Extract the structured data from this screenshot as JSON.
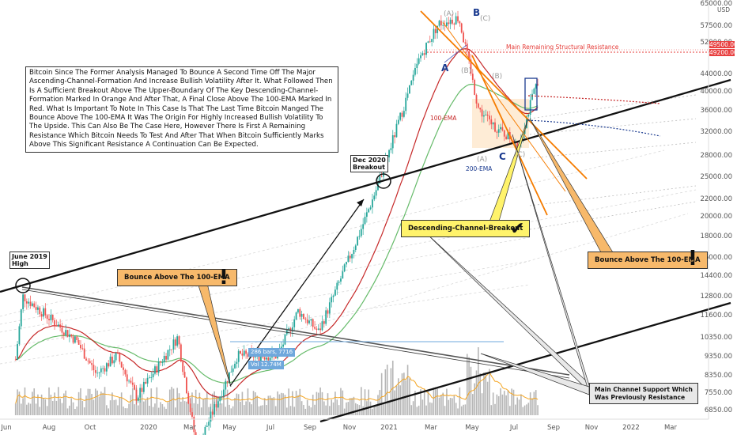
{
  "chart_data": {
    "type": "candlestick",
    "title": "",
    "y_scale": "log",
    "ylim": [
      6700,
      65000
    ],
    "x_tick_labels": [
      "Jun",
      "Aug",
      "Oct",
      "2020",
      "Mar",
      "May",
      "Jul",
      "Sep",
      "Nov",
      "2021",
      "Mar",
      "May",
      "Jul",
      "Sep",
      "Nov",
      "2022",
      "Mar"
    ],
    "y_tick_labels": [
      "65000.00",
      "57500.00",
      "52000.00",
      "44000.00",
      "40000.00",
      "36000.00",
      "32000.00",
      "28000.00",
      "25000.00",
      "22000.00",
      "20000.00",
      "18000.00",
      "16000.00",
      "14400.00",
      "12800.00",
      "11600.00",
      "10350.00",
      "9350.00",
      "8350.00",
      "7550.00",
      "6850.00"
    ],
    "currency_label": "USD",
    "price_marker_values": [
      "49500.00",
      "49200.00"
    ],
    "indicators": [
      "100-EMA",
      "200-EMA"
    ],
    "price_path": [
      {
        "date": "2019-06",
        "price": 9000
      },
      {
        "date": "2019-06-26",
        "price": 12800
      },
      {
        "date": "2019-08",
        "price": 11000
      },
      {
        "date": "2019-09",
        "price": 10000
      },
      {
        "date": "2019-10",
        "price": 8300
      },
      {
        "date": "2019-11",
        "price": 9200
      },
      {
        "date": "2019-12",
        "price": 7300
      },
      {
        "date": "2020-02",
        "price": 10200
      },
      {
        "date": "2020-03",
        "price": 5500
      },
      {
        "date": "2020-05",
        "price": 9200
      },
      {
        "date": "2020-07",
        "price": 9200
      },
      {
        "date": "2020-08",
        "price": 11800
      },
      {
        "date": "2020-09",
        "price": 10500
      },
      {
        "date": "2020-11",
        "price": 18000
      },
      {
        "date": "2020-12",
        "price": 24000
      },
      {
        "date": "2021-01",
        "price": 34000
      },
      {
        "date": "2021-02",
        "price": 48000
      },
      {
        "date": "2021-03",
        "price": 58000
      },
      {
        "date": "2021-04",
        "price": 60000
      },
      {
        "date": "2021-05",
        "price": 36000
      },
      {
        "date": "2021-06",
        "price": 32000
      },
      {
        "date": "2021-07",
        "price": 30000
      },
      {
        "date": "2021-08",
        "price": 44000
      }
    ],
    "annotation_labels": {
      "wave_A_outer": "(A)",
      "wave_B": "B",
      "wave_C_outer": "(C)",
      "wave_A": "A",
      "wave_B_inner": "(B)",
      "wave_B_inner2": "(B)",
      "wave_A_low": "(A)",
      "wave_C": "C",
      "wave_C_low": "(C)",
      "ema100": "100-EMA",
      "ema200": "200-EMA",
      "resistance": "Main Remaining Structural Resistance",
      "june_high": "June 2019\nHigh",
      "dec_breakout": "Dec 2020\nBreakout",
      "bounce_left": "Bounce Above The 100-EMA",
      "bounce_right": "Bounce Above The 100-EMA",
      "descending_breakout": "Descending-Channel-Breakout",
      "channel_support": "Main Channel Support Which\nWas Previously Resistance",
      "measure_1": "286 bars, 7716",
      "measure_2": "Vol 12.74M"
    }
  },
  "text_block": "Bitcoin Since The Former Analysis Managed To Bounce A Second Time Off The Major Ascending-Channel-Formation And Increase Bullish Volatility After It. What Followed Then Is A Sufficient Breakout Above The Upper-Boundary Of The Key Descending-Channel-Formation Marked In Orange And After That, A Final Close Above The 100-EMA Marked In Red. What Is Important To Note In This Case Is That The Last Time Bitcoin Manged The Bounce Above The 100-EMA It Was The Origin For Highly Increased Bullish Volatility To The Upside. This Can Also Be The Case Here, However There Is First A Remaining Resistance Which Bitcoin Needs To Test And After That When Bitcoin Sufficiently Marks Above This Significant Resistance A Continuation Can Be Expected.",
  "colors": {
    "candle_up": "#26a69a",
    "candle_down": "#ef5350",
    "ema100": "#c62828",
    "ema200": "#66bb6a",
    "orange_channel": "#f57c00",
    "resistance": "#e53935",
    "volume": "#9e9e9e",
    "volume_ma": "#f5a623",
    "blue_dotted": "#1a3a8f",
    "measure": "#6fa8dc"
  },
  "marks": {
    "exclaim": "!",
    "check": "✔"
  }
}
